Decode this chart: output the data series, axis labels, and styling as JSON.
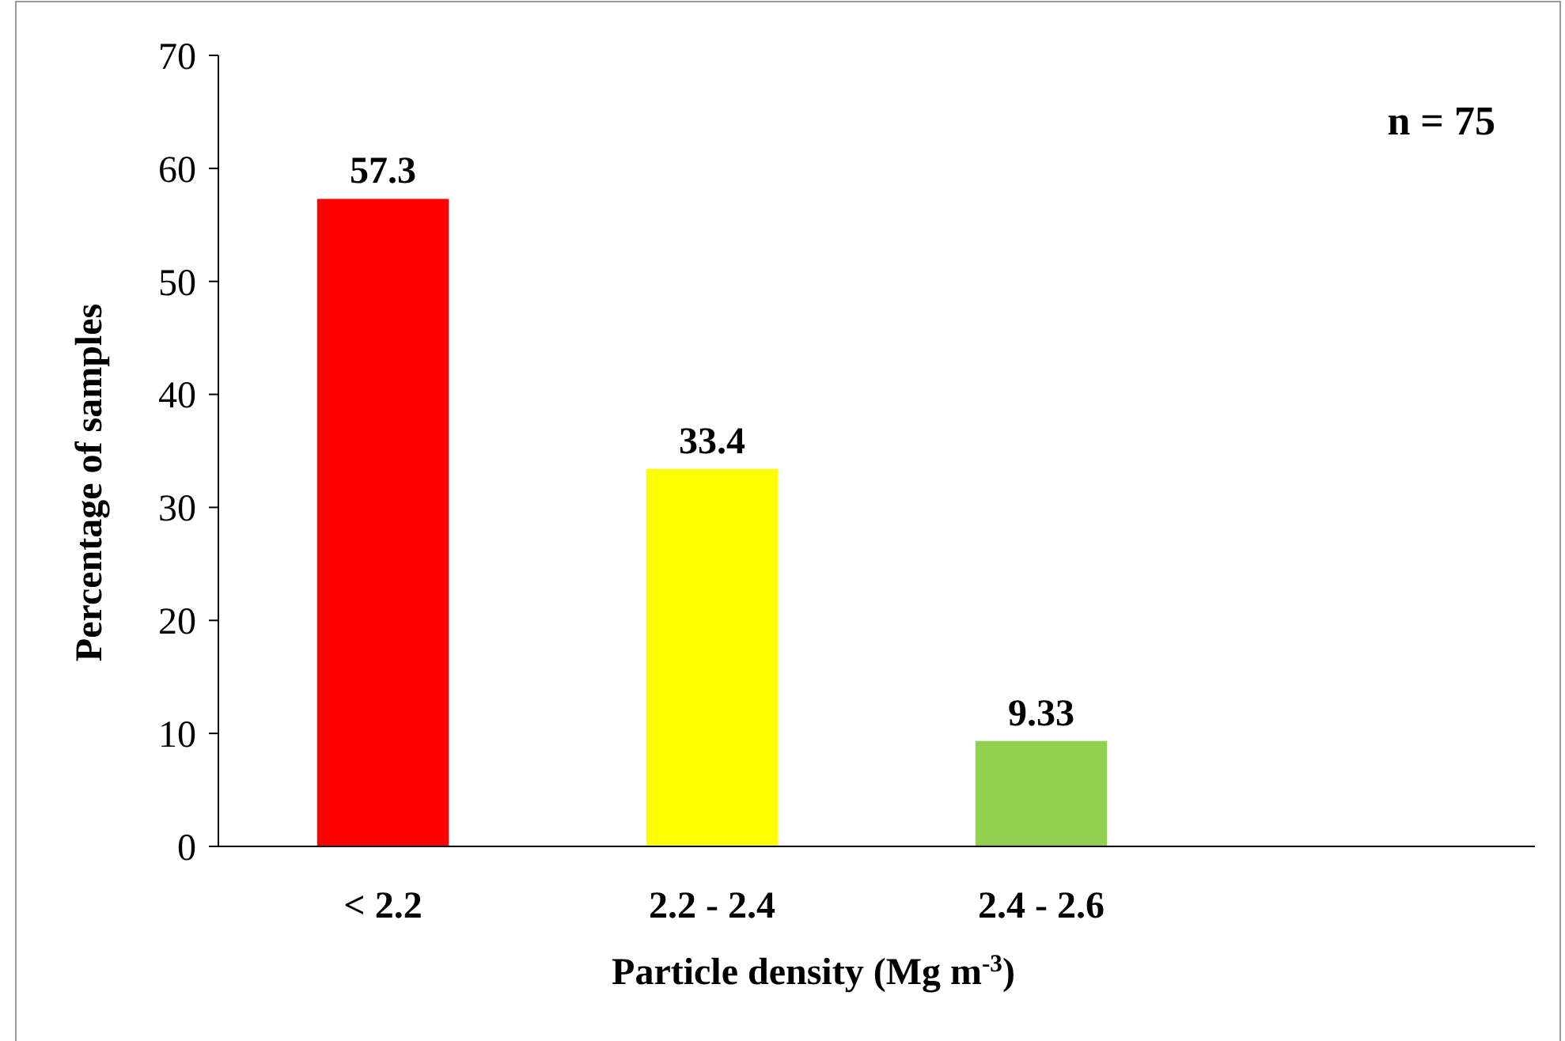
{
  "chart_data": {
    "type": "bar",
    "categories": [
      "< 2.2",
      "2.2 - 2.4",
      "2.4 - 2.6",
      null
    ],
    "values": [
      57.3,
      33.4,
      9.33,
      null
    ],
    "colors": [
      "#ff0000",
      "#ffff00",
      "#92d050",
      null
    ],
    "xlabel": "Particle density (Mg m$^{-3}$)",
    "ylabel": "Percentage of samples",
    "ylim": [
      0,
      70
    ],
    "yticks": [
      0,
      10,
      20,
      30,
      40,
      50,
      60,
      70
    ],
    "data_labels": true,
    "grid": false,
    "annotations": [
      "n = 75"
    ]
  }
}
